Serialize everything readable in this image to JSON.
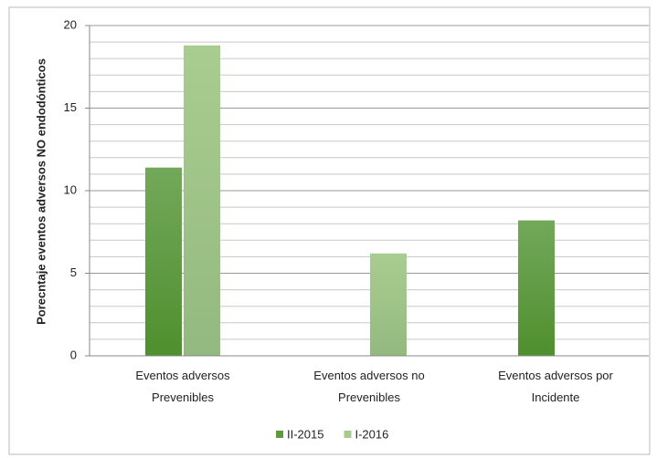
{
  "chart_data": {
    "type": "bar",
    "ylabel": "Porecntaje eventos adversos NO endodónticos",
    "categories": [
      "Eventos adversos Prevenibles",
      "Eventos adversos no Prevenibles",
      "Eventos adversos por Incidente"
    ],
    "series": [
      {
        "name": "II-2015",
        "color": "#5e9a40",
        "values": [
          11.4,
          null,
          8.2
        ]
      },
      {
        "name": "I-2016",
        "color": "#a6cb8c",
        "values": [
          18.8,
          6.2,
          null
        ]
      }
    ],
    "ylim": [
      0,
      20
    ],
    "yticks": [
      0,
      5,
      10,
      15,
      20
    ],
    "minor_yticks": [
      1,
      2,
      3,
      4,
      6,
      7,
      8,
      9,
      11,
      12,
      13,
      14,
      16,
      17,
      18,
      19
    ],
    "grid": true,
    "legend": "bottom"
  }
}
